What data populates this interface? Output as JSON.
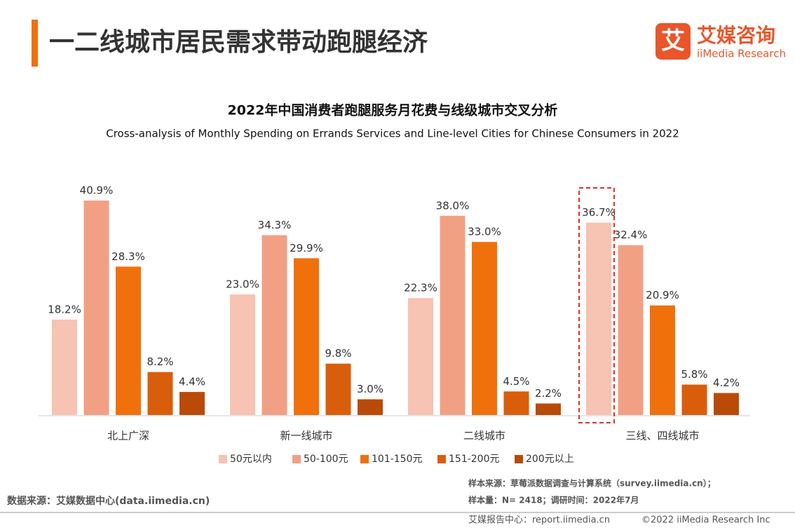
{
  "header": {
    "title": "一二线城市居民需求带动跑腿经济",
    "logo_icon": "艾",
    "logo_name": "艾媒咨询",
    "logo_sub": "iiMedia Research"
  },
  "chart_data": {
    "type": "bar",
    "title": "2022年中国消费者跑腿服务月花费与线级城市交叉分析",
    "subtitle": "Cross-analysis of Monthly Spending on Errands Services and Line-level Cities for Chinese Consumers in 2022",
    "categories": [
      "北上广深",
      "新一线城市",
      "二线城市",
      "三线、四线城市"
    ],
    "series": [
      {
        "name": "50元以内",
        "color": "#f7c3b2",
        "values": [
          18.2,
          23.0,
          22.3,
          36.7
        ],
        "value_labels": [
          "18.2%",
          "23.0%",
          "22.3%",
          "36.7%"
        ]
      },
      {
        "name": "50-100元",
        "color": "#f2a084",
        "values": [
          40.9,
          34.3,
          38.0,
          32.4
        ],
        "value_labels": [
          "40.9%",
          "34.3%",
          "38.0%",
          "32.4%"
        ]
      },
      {
        "name": "101-150元",
        "color": "#f0700c",
        "values": [
          28.3,
          29.9,
          33.0,
          20.9
        ],
        "value_labels": [
          "28.3%",
          "29.9%",
          "33.0%",
          "20.9%"
        ]
      },
      {
        "name": "151-200元",
        "color": "#d95e0b",
        "values": [
          8.2,
          9.8,
          4.5,
          5.8
        ],
        "value_labels": [
          "8.2%",
          "9.8%",
          "4.5%",
          "5.8%"
        ]
      },
      {
        "name": "200元以上",
        "color": "#b94b08",
        "values": [
          4.4,
          3.0,
          2.2,
          4.2
        ],
        "value_labels": [
          "4.4%",
          "3.0%",
          "2.2%",
          "4.2%"
        ]
      }
    ]
  },
  "footer": {
    "source": "数据来源：艾媒数据中心(data.iimedia.cn)",
    "sample_source": "样本来源：草莓派数据调查与计算系统（survey.iimedia.cn）；",
    "sample_size": "样本量：N= 2418；调研时间：2022年7月",
    "report_center": "艾媒报告中心：report.iimedia.cn",
    "copyright": "©2022  iiMedia Research  Inc"
  }
}
